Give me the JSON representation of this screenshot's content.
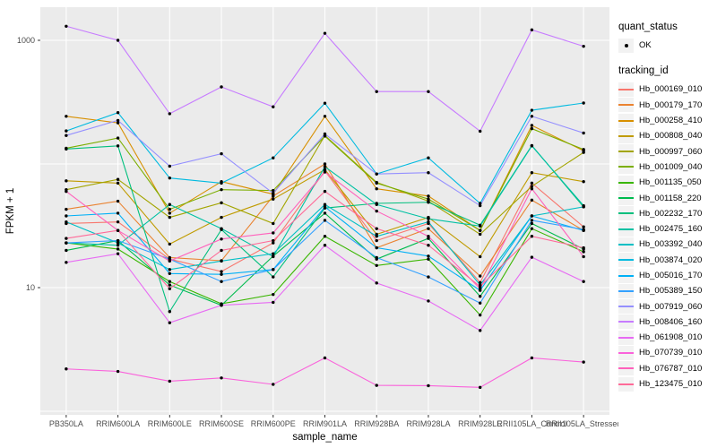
{
  "chart_data": {
    "type": "line",
    "title": "",
    "xlabel": "sample_name",
    "ylabel": "FPKM + 1",
    "x_scale": "categorical",
    "y_scale": "log10",
    "ylim": [
      1,
      2000
    ],
    "grid": "on",
    "legend_position": "right",
    "y_ticks": [
      {
        "value": 1000,
        "label": "1000"
      },
      {
        "value": 10,
        "label": "10"
      }
    ],
    "y_gridlines": [
      1000,
      100,
      10,
      1
    ],
    "categories": [
      "PB350LA",
      "RRIM600LA",
      "RRIM600LE",
      "RRIM600SE",
      "RRIM600PE",
      "RRIM901LA",
      "RRIM928BA",
      "RRIM928LA",
      "RRIM928LE",
      "RRII105LA_Control",
      "RRII105LA_Stressed"
    ],
    "point_marker": {
      "shape": "circle",
      "color": "#000000",
      "meaning": "quant_status OK"
    },
    "series": [
      {
        "name": "Hb_000169_010",
        "color": "#F8766D",
        "values": [
          33,
          34,
          17,
          13.5,
          23,
          88,
          24,
          33,
          11,
          70,
          31
        ]
      },
      {
        "name": "Hb_000179_170",
        "color": "#EA8331",
        "values": [
          43,
          50,
          17.5,
          16.5,
          55,
          100,
          21,
          30,
          12.4,
          51,
          29
        ]
      },
      {
        "name": "Hb_000258_410",
        "color": "#D89000",
        "values": [
          243,
          215,
          40,
          72,
          57,
          243,
          63,
          55,
          29,
          205,
          128
        ]
      },
      {
        "name": "Hb_000808_040",
        "color": "#C09B00",
        "values": [
          73,
          70,
          22.5,
          37,
          52,
          90,
          27,
          37,
          17.8,
          85,
          72
        ]
      },
      {
        "name": "Hb_000997_060",
        "color": "#A3A500",
        "values": [
          62,
          75,
          37,
          48.5,
          33,
          170,
          71,
          50,
          27,
          66,
          124
        ]
      },
      {
        "name": "Hb_001009_040",
        "color": "#7CAE00",
        "values": [
          134,
          162,
          43,
          62,
          61,
          168,
          70,
          52,
          29,
          193,
          131
        ]
      },
      {
        "name": "Hb_001135_050",
        "color": "#39B600",
        "values": [
          23,
          20.5,
          11.2,
          7.4,
          8.8,
          26,
          15.1,
          17,
          6,
          30,
          19.5
        ]
      },
      {
        "name": "Hb_001158_220",
        "color": "#00BB4E",
        "values": [
          20,
          24,
          10.5,
          7.2,
          18,
          40,
          17,
          25,
          8.5,
          33,
          20.5
        ]
      },
      {
        "name": "Hb_002232_170",
        "color": "#00BF7D",
        "values": [
          132,
          140,
          6.4,
          29.5,
          12.2,
          44,
          48,
          49,
          32,
          141,
          45
        ]
      },
      {
        "name": "Hb_002475_160",
        "color": "#00C1A3",
        "values": [
          23,
          22,
          47,
          30,
          17.8,
          95,
          47,
          36,
          31.5,
          140,
          46
        ]
      },
      {
        "name": "Hb_003392_040",
        "color": "#00BFC4",
        "values": [
          34,
          23,
          14,
          16.4,
          18.8,
          47,
          26,
          34,
          10.5,
          38,
          45
        ]
      },
      {
        "name": "Hb_003874_020",
        "color": "#00BAE0",
        "values": [
          185,
          260,
          77,
          70,
          112,
          310,
          83,
          112,
          48,
          272,
          311
        ]
      },
      {
        "name": "Hb_005016_170",
        "color": "#00B0F6",
        "values": [
          38,
          40,
          13,
          12.8,
          14,
          45,
          21,
          18,
          9.5,
          38,
          29
        ]
      },
      {
        "name": "Hb_005389_150",
        "color": "#35A2FF",
        "values": [
          23,
          24,
          17,
          11.2,
          14,
          35,
          17.5,
          12.2,
          7.5,
          35,
          29.5
        ]
      },
      {
        "name": "Hb_007919_060",
        "color": "#9590FF",
        "values": [
          170,
          225,
          96,
          121,
          58,
          175,
          83,
          85,
          46,
          243,
          178
        ]
      },
      {
        "name": "Hb_008406_160",
        "color": "#C77CFF",
        "values": [
          1300,
          1000,
          255,
          420,
          290,
          1140,
          385,
          385,
          184,
          1215,
          895
        ]
      },
      {
        "name": "Hb_061908_010",
        "color": "#E76BF3",
        "values": [
          16,
          18.8,
          5.2,
          7.2,
          7.6,
          22,
          10.9,
          7.8,
          4.5,
          17.6,
          11.2
        ]
      },
      {
        "name": "Hb_070739_010",
        "color": "#FA62DB",
        "values": [
          2.2,
          2.1,
          1.75,
          1.86,
          1.65,
          2.7,
          1.62,
          1.61,
          1.56,
          2.7,
          2.5
        ]
      },
      {
        "name": "Hb_076787_010",
        "color": "#FF62BC",
        "values": [
          60,
          29,
          16.4,
          24.7,
          27.7,
          86,
          41.6,
          26,
          9.8,
          63,
          17.8
        ]
      },
      {
        "name": "Hb_123475_010",
        "color": "#FF6A98",
        "values": [
          25,
          29,
          9.8,
          20,
          24,
          60,
          30,
          22,
          10.2,
          26,
          21
        ]
      }
    ],
    "legend": {
      "quant_status_title": "quant_status",
      "quant_status_items": [
        {
          "label": "OK",
          "marker": "black-point"
        }
      ],
      "tracking_id_title": "tracking_id"
    }
  },
  "style": {
    "panel_bg": "#EBEBEB",
    "gridline_color": "#FFFFFF",
    "tick_label_color": "#4D4D4D",
    "point_color": "#000000",
    "legend_key_bg": "#F2F2F2"
  }
}
